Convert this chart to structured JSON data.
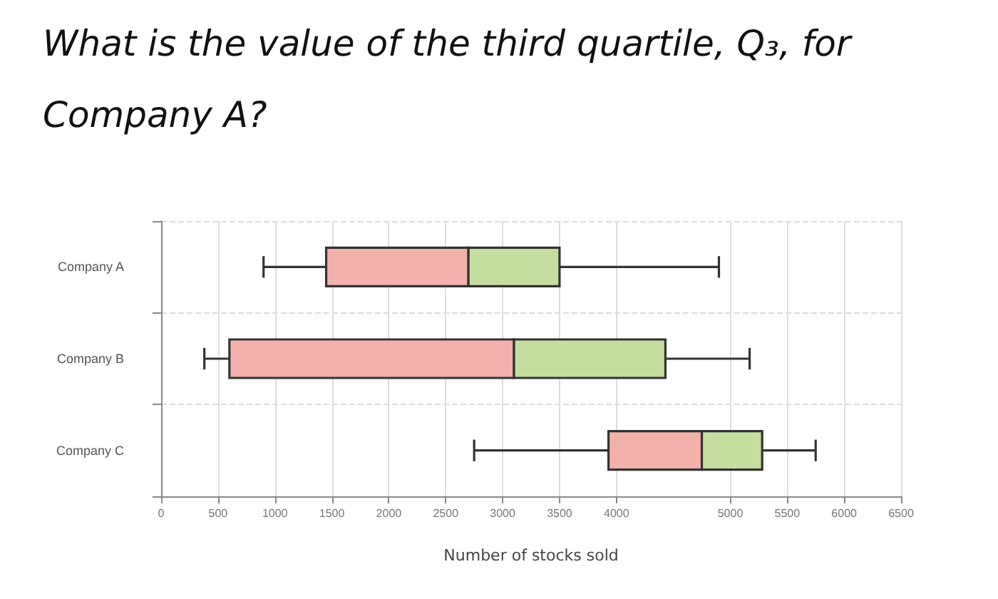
{
  "chart_data": {
    "type": "box",
    "title": "What is the value of the third quartile, Q₃, for Company A?",
    "xlabel": "Number of stocks sold",
    "categories": [
      "Company A",
      "Company B",
      "Company C"
    ],
    "orientation": "horizontal",
    "boxes": [
      {
        "low": 900,
        "q1": 1450,
        "median": 2700,
        "q3": 3500,
        "high": 4900
      },
      {
        "low": 380,
        "q1": 600,
        "median": 3100,
        "q3": 4430,
        "high": 5170
      },
      {
        "low": 2750,
        "q1": 3930,
        "median": 4750,
        "q3": 5280,
        "high": 5750
      }
    ],
    "colors": [
      [
        "#f2b1aa",
        "#c5dea0"
      ],
      [
        "#f2b1aa",
        "#c5dea0"
      ],
      [
        "#f2b1aa",
        "#c5dea0"
      ]
    ],
    "xlim": [
      0,
      6500
    ],
    "xticks": [
      0,
      500,
      1000,
      1500,
      2000,
      2500,
      3000,
      3500,
      4000,
      5000,
      5500,
      6000,
      6500
    ],
    "grid": true
  }
}
